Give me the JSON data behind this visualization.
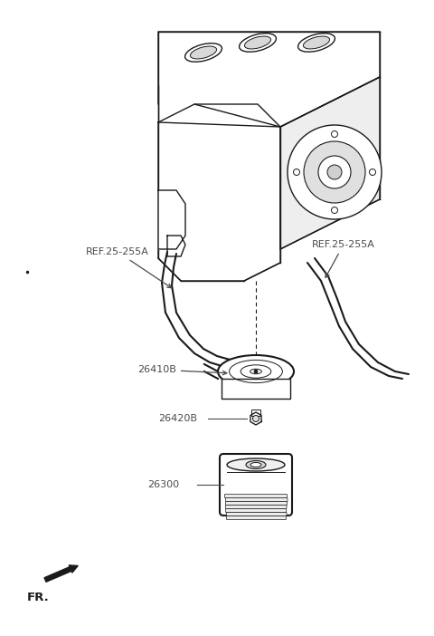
{
  "bg_color": "#ffffff",
  "line_color": "#1a1a1a",
  "label_color": "#4a4a4a",
  "labels": {
    "REF_left": "REF.25-255A",
    "REF_right": "REF.25-255A",
    "part_26410B": "26410B",
    "part_26420B": "26420B",
    "part_26300": "26300",
    "FR": "FR."
  },
  "fig_width": 4.8,
  "fig_height": 7.02,
  "dpi": 100
}
